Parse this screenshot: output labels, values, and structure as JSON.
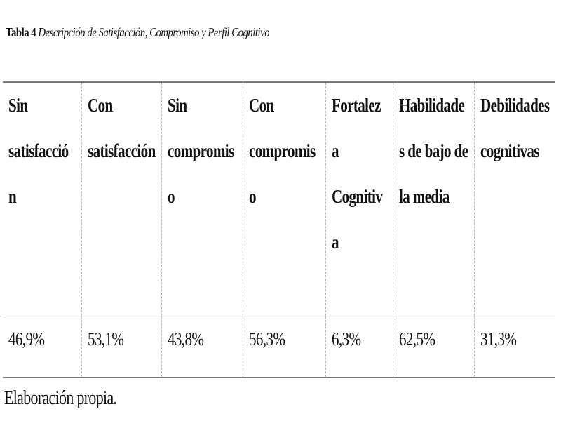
{
  "caption": {
    "label": "Tabla 4",
    "title": "Descripción de Satisfacción, Compromiso y Perfil Cognitivo"
  },
  "table": {
    "headers": [
      "Sin satisfacción",
      "Con satisfacción",
      "Sin compromiso",
      "Con compromiso",
      "Fortaleza Cognitiva",
      "Habilidades de bajo de la media",
      "Debilidades cognitivas"
    ],
    "rows": [
      [
        "46,9%",
        "53,1%",
        "43,8%",
        "56,3%",
        "6,3%",
        "62,5%",
        "31,3%"
      ]
    ]
  },
  "note": "Elaboración propia."
}
